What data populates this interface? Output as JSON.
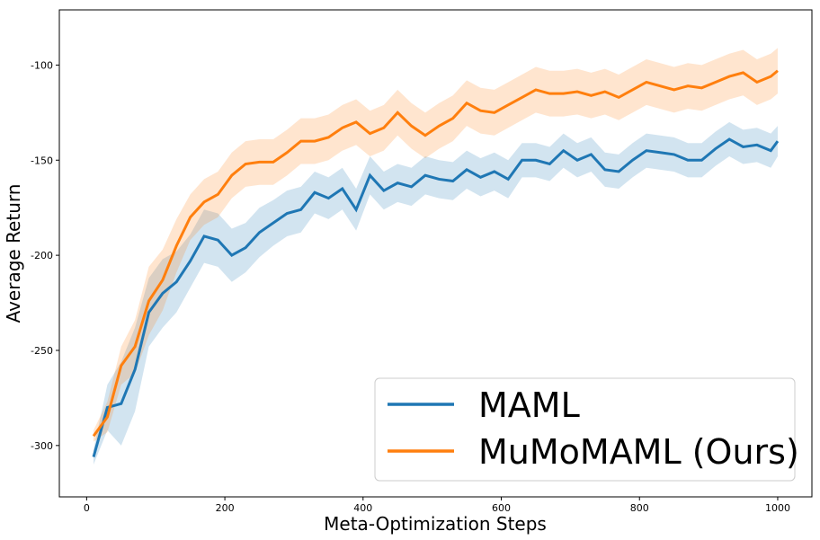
{
  "chart_data": {
    "type": "line",
    "xlabel": "Meta-Optimization Steps",
    "ylabel": "Average Return",
    "x": [
      10,
      30,
      50,
      70,
      90,
      110,
      130,
      150,
      170,
      190,
      210,
      230,
      250,
      270,
      290,
      310,
      330,
      350,
      370,
      390,
      410,
      430,
      450,
      470,
      490,
      510,
      530,
      550,
      570,
      590,
      610,
      630,
      650,
      670,
      690,
      710,
      730,
      750,
      770,
      790,
      810,
      830,
      850,
      870,
      890,
      910,
      930,
      950,
      970,
      990,
      1000
    ],
    "xlim": [
      -39.5,
      1049.5
    ],
    "ylim": [
      -327,
      -71
    ],
    "xticks": [
      0,
      200,
      400,
      600,
      800,
      1000
    ],
    "yticks": [
      -300,
      -250,
      -200,
      -150,
      -100
    ],
    "legend": "lower right",
    "series": [
      {
        "name": "MAML",
        "color": "#1f77b4",
        "values": [
          -306,
          -280,
          -278,
          -260,
          -230,
          -220,
          -214,
          -203,
          -190,
          -192,
          -200,
          -196,
          -188,
          -183,
          -178,
          -176,
          -167,
          -170,
          -165,
          -176,
          -158,
          -166,
          -162,
          -164,
          -158,
          -160,
          -161,
          -155,
          -159,
          -156,
          -160,
          -150,
          -150,
          -152,
          -145,
          -150,
          -147,
          -155,
          -156,
          -150,
          -145,
          -146,
          -147,
          -150,
          -150,
          -144,
          -139,
          -143,
          -142,
          -145,
          -140
        ],
        "lower": [
          -310,
          -292,
          -300,
          -282,
          -248,
          -238,
          -230,
          -217,
          -204,
          -206,
          -214,
          -209,
          -201,
          -195,
          -190,
          -188,
          -178,
          -181,
          -176,
          -187,
          -168,
          -176,
          -172,
          -174,
          -168,
          -170,
          -171,
          -165,
          -169,
          -166,
          -170,
          -159,
          -159,
          -161,
          -154,
          -159,
          -156,
          -164,
          -165,
          -159,
          -154,
          -155,
          -156,
          -159,
          -159,
          -153,
          -148,
          -152,
          -151,
          -154,
          -148
        ],
        "upper": [
          -302,
          -268,
          -256,
          -238,
          -212,
          -202,
          -198,
          -189,
          -176,
          -178,
          -186,
          -183,
          -175,
          -171,
          -166,
          -164,
          -156,
          -159,
          -154,
          -165,
          -148,
          -156,
          -152,
          -154,
          -148,
          -150,
          -151,
          -145,
          -149,
          -146,
          -150,
          -141,
          -141,
          -143,
          -136,
          -141,
          -138,
          -146,
          -147,
          -141,
          -136,
          -137,
          -138,
          -141,
          -141,
          -135,
          -130,
          -134,
          -133,
          -136,
          -132
        ]
      },
      {
        "name": "MuMoMAML (Ours)",
        "color": "#ff7f0e",
        "values": [
          -295,
          -285,
          -258,
          -248,
          -224,
          -213,
          -195,
          -180,
          -172,
          -168,
          -158,
          -152,
          -151,
          -151,
          -146,
          -140,
          -140,
          -138,
          -133,
          -130,
          -136,
          -133,
          -125,
          -132,
          -137,
          -132,
          -128,
          -120,
          -124,
          -125,
          -121,
          -117,
          -113,
          -115,
          -115,
          -114,
          -116,
          -114,
          -117,
          -113,
          -109,
          -111,
          -113,
          -111,
          -112,
          -109,
          -106,
          -104,
          -109,
          -106,
          -103
        ],
        "lower": [
          -298,
          -293,
          -268,
          -262,
          -242,
          -229,
          -209,
          -192,
          -184,
          -180,
          -170,
          -164,
          -163,
          -163,
          -158,
          -152,
          -152,
          -150,
          -145,
          -142,
          -148,
          -145,
          -137,
          -144,
          -149,
          -144,
          -140,
          -132,
          -136,
          -137,
          -133,
          -129,
          -125,
          -127,
          -127,
          -126,
          -128,
          -126,
          -129,
          -125,
          -121,
          -123,
          -125,
          -123,
          -124,
          -121,
          -118,
          -116,
          -121,
          -118,
          -115
        ],
        "upper": [
          -292,
          -277,
          -248,
          -234,
          -206,
          -197,
          -181,
          -168,
          -160,
          -156,
          -146,
          -140,
          -139,
          -139,
          -134,
          -128,
          -128,
          -126,
          -121,
          -118,
          -124,
          -121,
          -113,
          -120,
          -125,
          -120,
          -116,
          -108,
          -112,
          -113,
          -109,
          -105,
          -101,
          -103,
          -103,
          -102,
          -104,
          -102,
          -105,
          -101,
          -97,
          -99,
          -101,
          -99,
          -100,
          -97,
          -94,
          -92,
          -97,
          -94,
          -91
        ]
      }
    ]
  }
}
